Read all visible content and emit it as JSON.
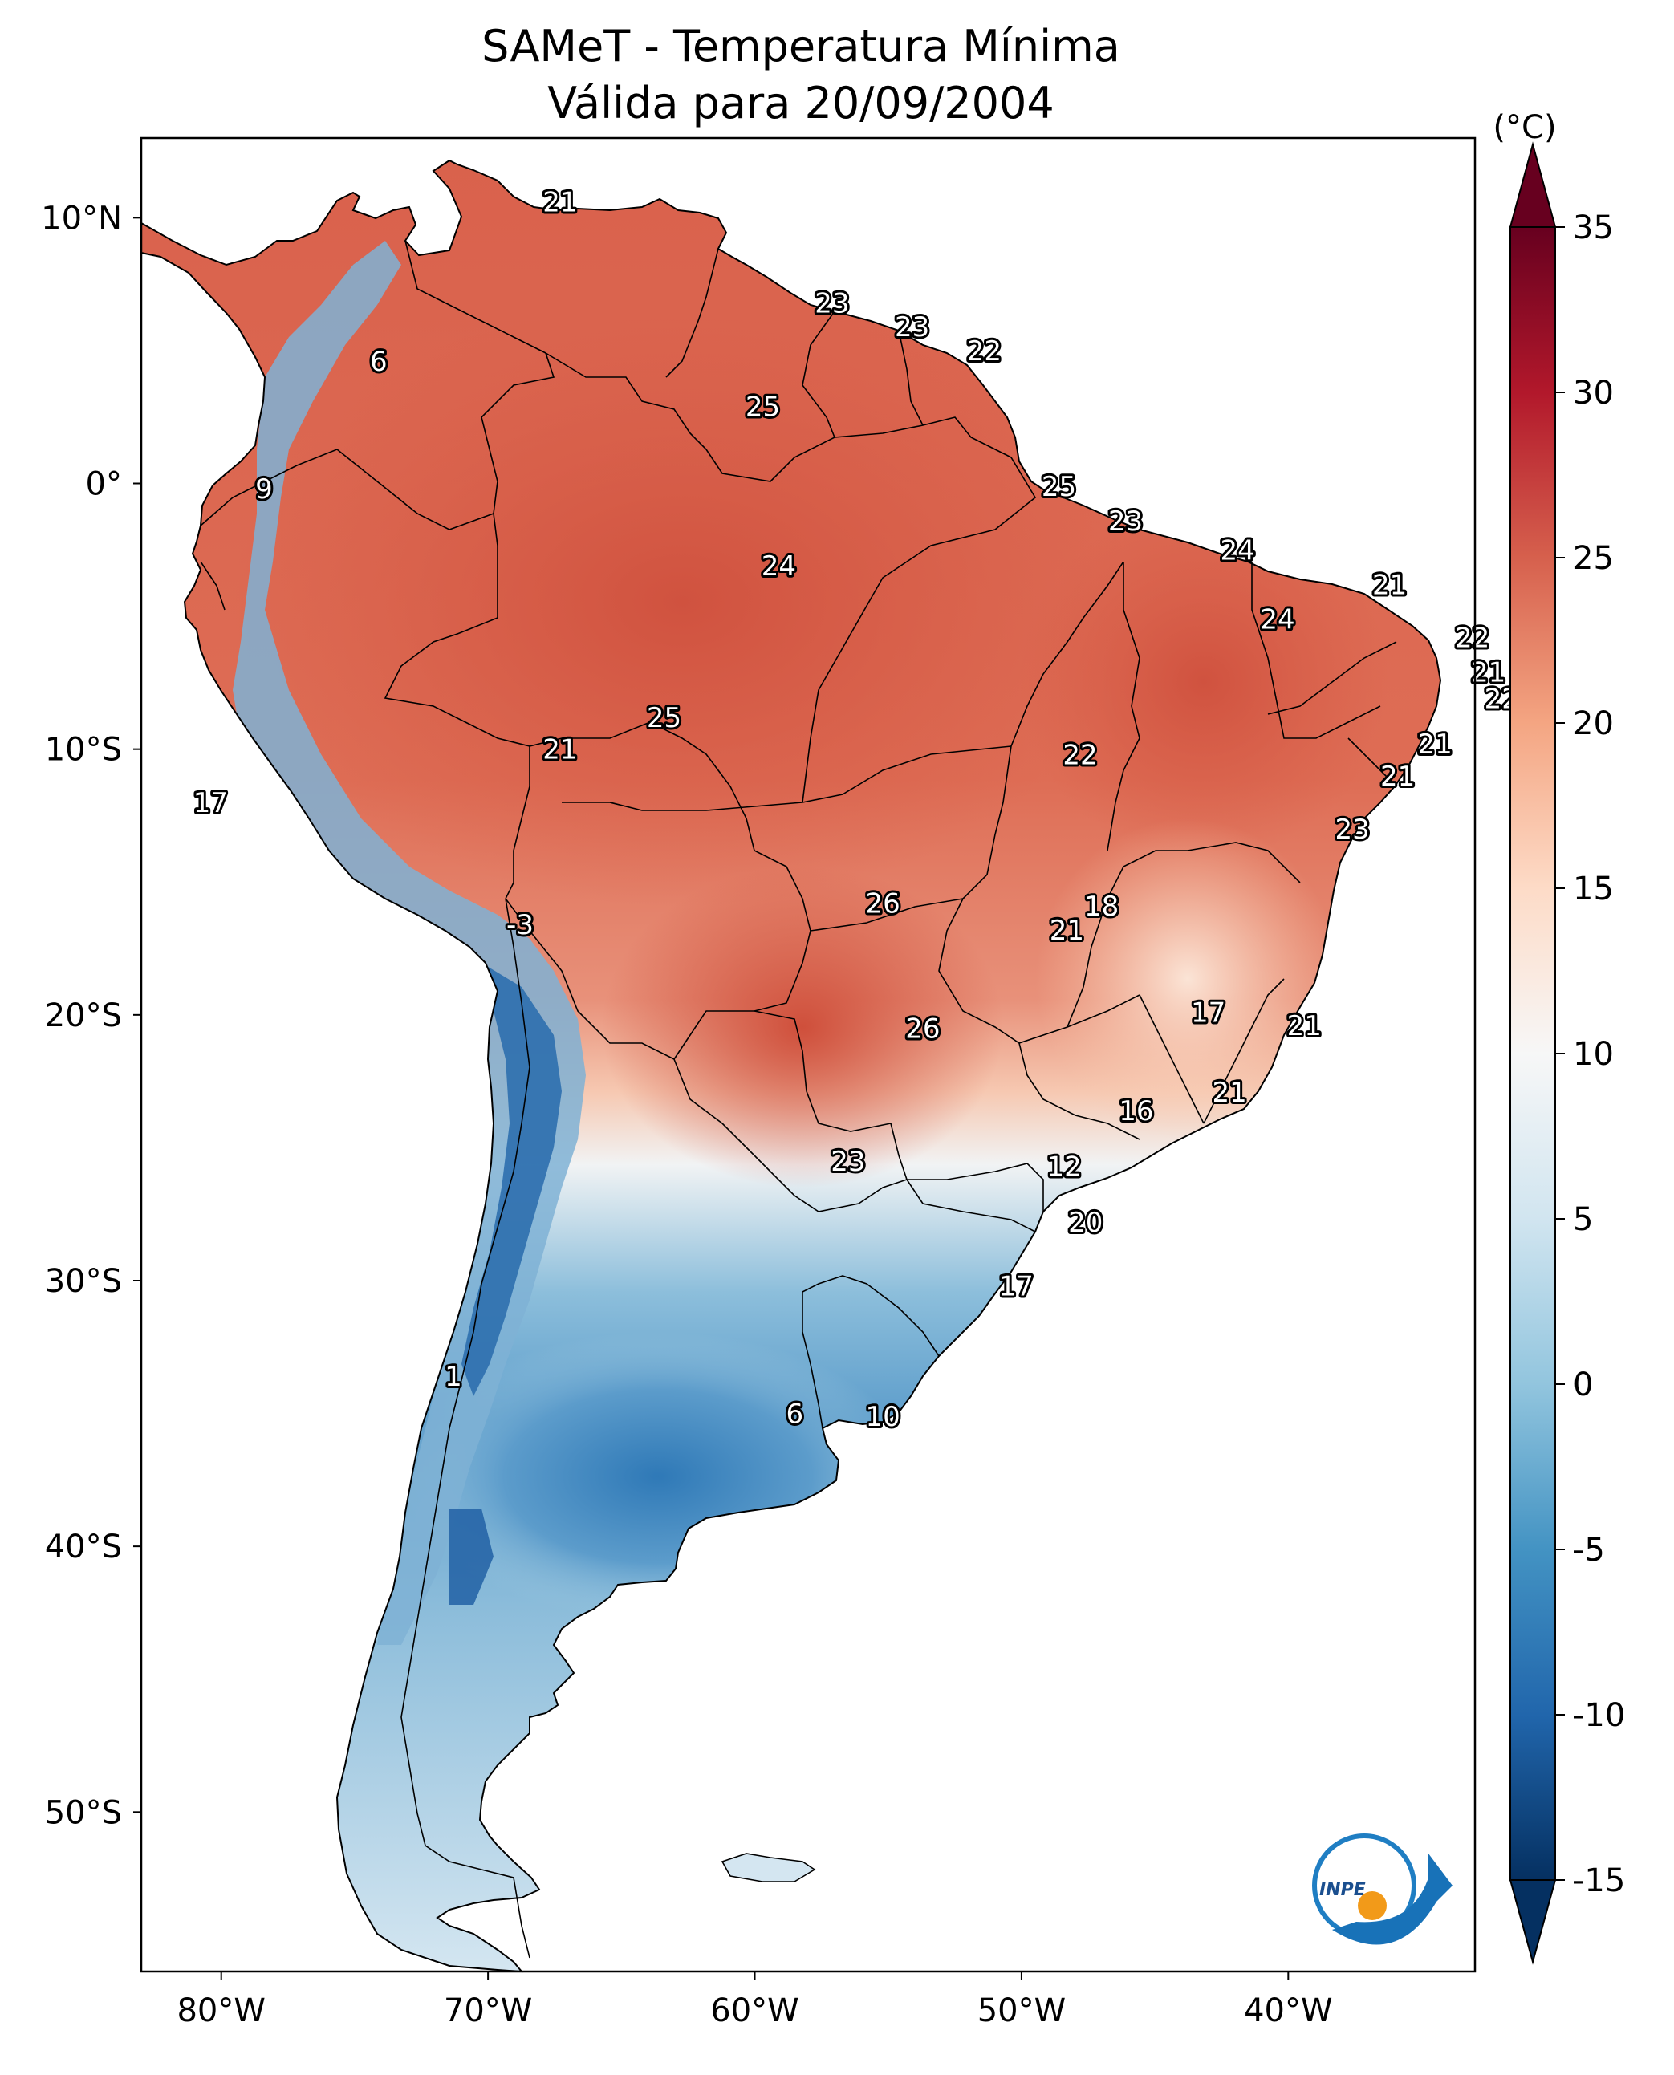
{
  "title": {
    "line1": "SAMeT - Temperatura Mínima",
    "line2": "Válida para 20/09/2004"
  },
  "map": {
    "lon_ticks": [
      "80°W",
      "70°W",
      "60°W",
      "50°W",
      "40°W"
    ],
    "lat_ticks": [
      "10°N",
      "0°",
      "10°S",
      "20°S",
      "30°S",
      "40°S",
      "50°S"
    ],
    "lon_range": [
      -83,
      -33
    ],
    "lat_range": [
      13,
      -56
    ]
  },
  "colorbar": {
    "unit": "(°C)",
    "ticks": [
      "35",
      "30",
      "25",
      "20",
      "15",
      "10",
      "5",
      "0",
      "-5",
      "-10",
      "-15"
    ],
    "min": -15,
    "max": 35,
    "colormap": "RdBu_r",
    "colors": [
      "#053061",
      "#2166ac",
      "#4393c3",
      "#92c5de",
      "#d1e5f0",
      "#f7f7f7",
      "#fddbc7",
      "#f4a582",
      "#d6604d",
      "#b2182b",
      "#67001f"
    ]
  },
  "labels": [
    {
      "text": "21",
      "lon": -67.3,
      "lat": 10.6
    },
    {
      "text": "6",
      "lon": -74.1,
      "lat": 4.6
    },
    {
      "text": "23",
      "lon": -57.1,
      "lat": 6.8
    },
    {
      "text": "23",
      "lon": -54.1,
      "lat": 5.9
    },
    {
      "text": "22",
      "lon": -51.4,
      "lat": 5.0
    },
    {
      "text": "25",
      "lon": -59.7,
      "lat": 2.9
    },
    {
      "text": "9",
      "lon": -78.4,
      "lat": -0.2
    },
    {
      "text": "25",
      "lon": -48.6,
      "lat": -0.1
    },
    {
      "text": "23",
      "lon": -46.1,
      "lat": -1.4
    },
    {
      "text": "24",
      "lon": -59.1,
      "lat": -3.1
    },
    {
      "text": "24",
      "lon": -41.9,
      "lat": -2.5
    },
    {
      "text": "21",
      "lon": -36.2,
      "lat": -3.8
    },
    {
      "text": "24",
      "lon": -40.4,
      "lat": -5.1
    },
    {
      "text": "22",
      "lon": -33.1,
      "lat": -5.8
    },
    {
      "text": "21",
      "lon": -32.5,
      "lat": -7.1
    },
    {
      "text": "22",
      "lon": -32.0,
      "lat": -8.1
    },
    {
      "text": "25",
      "lon": -63.4,
      "lat": -8.8
    },
    {
      "text": "21",
      "lon": -34.5,
      "lat": -9.8
    },
    {
      "text": "21",
      "lon": -67.3,
      "lat": -10.0
    },
    {
      "text": "22",
      "lon": -47.8,
      "lat": -10.2
    },
    {
      "text": "21",
      "lon": -35.9,
      "lat": -11.0
    },
    {
      "text": "17",
      "lon": -80.4,
      "lat": -12.0
    },
    {
      "text": "23",
      "lon": -37.6,
      "lat": -13.0
    },
    {
      "text": "26",
      "lon": -55.2,
      "lat": -15.8
    },
    {
      "text": "18",
      "lon": -47.0,
      "lat": -15.9
    },
    {
      "text": "-3",
      "lon": -68.8,
      "lat": -16.6
    },
    {
      "text": "21",
      "lon": -48.3,
      "lat": -16.8
    },
    {
      "text": "17",
      "lon": -43.0,
      "lat": -19.9
    },
    {
      "text": "26",
      "lon": -53.7,
      "lat": -20.5
    },
    {
      "text": "21",
      "lon": -39.4,
      "lat": -20.4
    },
    {
      "text": "21",
      "lon": -42.2,
      "lat": -22.9
    },
    {
      "text": "16",
      "lon": -45.7,
      "lat": -23.6
    },
    {
      "text": "12",
      "lon": -48.4,
      "lat": -25.7
    },
    {
      "text": "23",
      "lon": -56.5,
      "lat": -25.5
    },
    {
      "text": "20",
      "lon": -47.6,
      "lat": -27.8
    },
    {
      "text": "17",
      "lon": -50.2,
      "lat": -30.2
    },
    {
      "text": "1",
      "lon": -71.3,
      "lat": -33.6
    },
    {
      "text": "6",
      "lon": -58.5,
      "lat": -35.0
    },
    {
      "text": "10",
      "lon": -55.2,
      "lat": -35.1
    }
  ],
  "logo": {
    "text": "INPE"
  }
}
